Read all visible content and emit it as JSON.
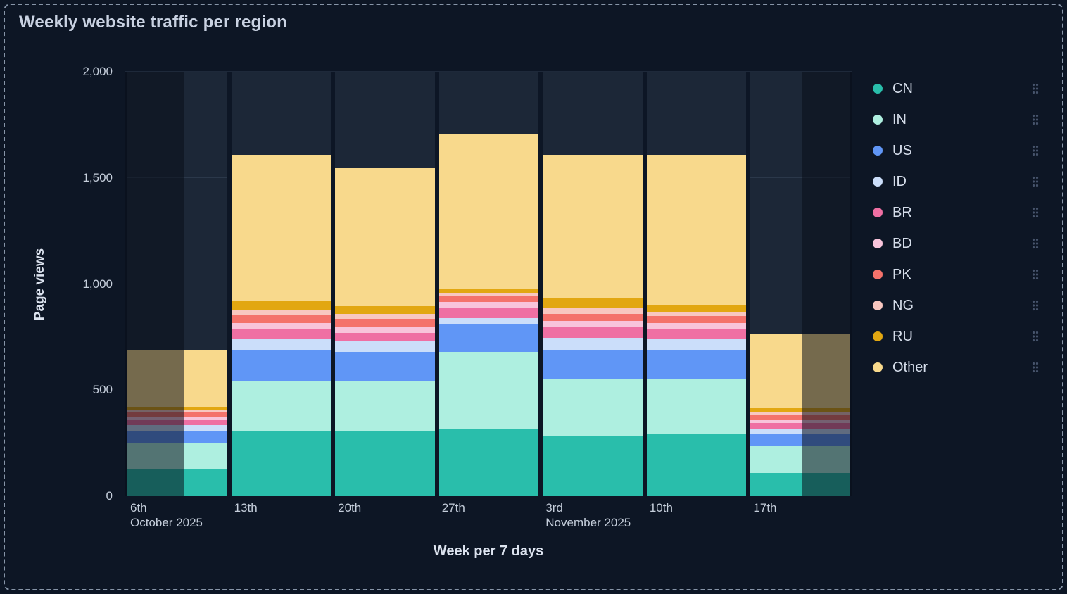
{
  "title": "Weekly website traffic per region",
  "y_axis": {
    "label": "Page views",
    "ticks": [
      {
        "value": 2000,
        "label": "2,000"
      },
      {
        "value": 1500,
        "label": "1,500"
      },
      {
        "value": 1000,
        "label": "1,000"
      },
      {
        "value": 500,
        "label": "500"
      },
      {
        "value": 0,
        "label": "0"
      }
    ]
  },
  "x_axis": {
    "label": "Week per 7 days",
    "ticks": [
      {
        "day": "6th",
        "month": "October 2025"
      },
      {
        "day": "13th",
        "month": ""
      },
      {
        "day": "20th",
        "month": ""
      },
      {
        "day": "27th",
        "month": ""
      },
      {
        "day": "3rd",
        "month": "November 2025"
      },
      {
        "day": "10th",
        "month": ""
      },
      {
        "day": "17th",
        "month": ""
      }
    ]
  },
  "legend": {
    "items": [
      {
        "label": "CN",
        "color": "#29BEAB"
      },
      {
        "label": "IN",
        "color": "#AEEFE0"
      },
      {
        "label": "US",
        "color": "#6096F6"
      },
      {
        "label": "ID",
        "color": "#CBDEFA"
      },
      {
        "label": "BR",
        "color": "#EF6FA3"
      },
      {
        "label": "BD",
        "color": "#F8C4DB"
      },
      {
        "label": "PK",
        "color": "#F4726B"
      },
      {
        "label": "NG",
        "color": "#F8C7C0"
      },
      {
        "label": "RU",
        "color": "#E2A711"
      },
      {
        "label": "Other",
        "color": "#F8D98C"
      }
    ]
  },
  "chart_data": {
    "type": "bar",
    "stacked": true,
    "title": "Weekly website traffic per region",
    "xlabel": "Week per 7 days",
    "ylabel": "Page views",
    "ylim": [
      0,
      2000
    ],
    "gridlines": [
      500,
      1000,
      1500,
      2000
    ],
    "legend_position": "right",
    "categories": [
      "Oct 6",
      "Oct 13",
      "Oct 20",
      "Oct 27",
      "Nov 3",
      "Nov 10",
      "Nov 17"
    ],
    "series": [
      {
        "name": "CN",
        "color": "#29BEAB",
        "values": [
          130,
          310,
          305,
          320,
          285,
          295,
          110
        ]
      },
      {
        "name": "IN",
        "color": "#AEEFE0",
        "values": [
          120,
          235,
          235,
          360,
          265,
          255,
          130
        ]
      },
      {
        "name": "US",
        "color": "#6096F6",
        "values": [
          55,
          145,
          140,
          130,
          140,
          140,
          55
        ]
      },
      {
        "name": "ID",
        "color": "#CBDEFA",
        "values": [
          30,
          50,
          50,
          30,
          55,
          50,
          25
        ]
      },
      {
        "name": "BR",
        "color": "#EF6FA3",
        "values": [
          25,
          45,
          40,
          50,
          55,
          50,
          25
        ]
      },
      {
        "name": "BD",
        "color": "#F8C4DB",
        "values": [
          15,
          30,
          30,
          25,
          25,
          25,
          15
        ]
      },
      {
        "name": "PK",
        "color": "#F4726B",
        "values": [
          20,
          40,
          35,
          30,
          35,
          35,
          25
        ]
      },
      {
        "name": "NG",
        "color": "#F8C7C0",
        "values": [
          10,
          25,
          25,
          15,
          25,
          20,
          10
        ]
      },
      {
        "name": "RU",
        "color": "#E2A711",
        "values": [
          15,
          40,
          35,
          20,
          50,
          30,
          20
        ]
      },
      {
        "name": "Other",
        "color": "#F8D98C",
        "values": [
          270,
          690,
          655,
          730,
          675,
          710,
          350
        ]
      }
    ],
    "totals": [
      690,
      1610,
      1550,
      1710,
      1610,
      1610,
      765
    ],
    "partial_week_shading": [
      {
        "category": "Oct 6",
        "side": "left",
        "fraction": 0.57
      },
      {
        "category": "Nov 17",
        "side": "right",
        "fraction": 0.48
      }
    ]
  }
}
